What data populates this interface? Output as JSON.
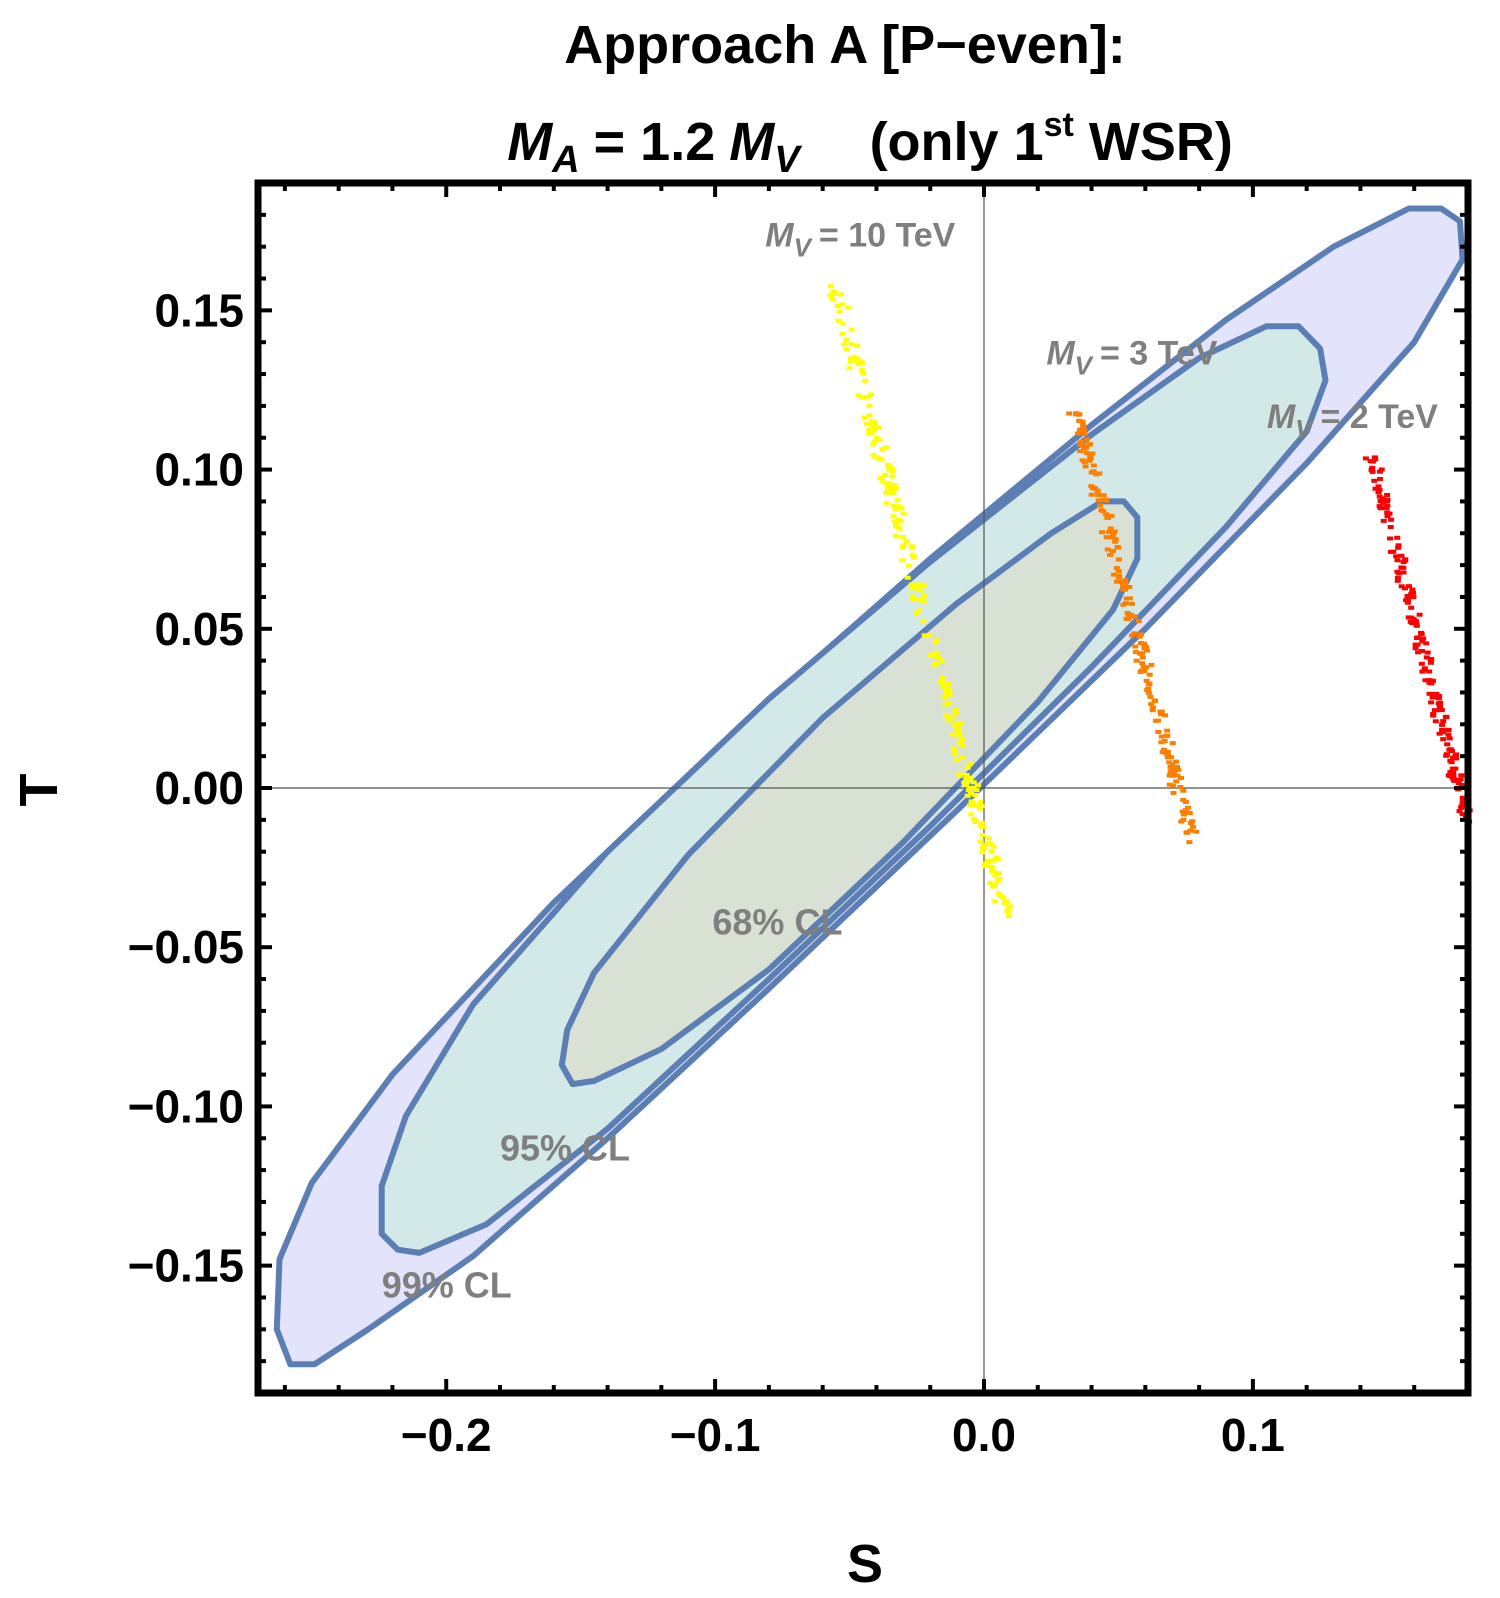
{
  "chart_data": {
    "type": "scatter",
    "title_line1": "Approach A [P−even]:",
    "title_line2": {
      "m": "M",
      "m_sub": "A",
      "eq": "= 1.2",
      "mv": "M",
      "mv_sub": "V",
      "paren_open": "(only 1",
      "sup": "st",
      "paren_close": " WSR)"
    },
    "xlabel": "S",
    "ylabel": "T",
    "xlim": [
      -0.27,
      0.18
    ],
    "ylim": [
      -0.19,
      0.19
    ],
    "x_ticks": [
      {
        "value": -0.2,
        "label": "−0.2"
      },
      {
        "value": -0.1,
        "label": "−0.1"
      },
      {
        "value": 0.0,
        "label": "0.0"
      },
      {
        "value": 0.1,
        "label": "0.1"
      }
    ],
    "y_ticks": [
      {
        "value": 0.15,
        "label": "0.15"
      },
      {
        "value": 0.1,
        "label": "0.10"
      },
      {
        "value": 0.05,
        "label": "0.05"
      },
      {
        "value": 0.0,
        "label": "0.00"
      },
      {
        "value": -0.05,
        "label": "−0.05"
      },
      {
        "value": -0.1,
        "label": "−0.10"
      },
      {
        "value": -0.15,
        "label": "−0.15"
      }
    ],
    "contours": [
      {
        "name": "99% CL",
        "fill": "#e3e3fb",
        "stroke": "#5b7fb5",
        "points": [
          [
            -0.258,
            -0.181
          ],
          [
            -0.249,
            -0.181
          ],
          [
            -0.229,
            -0.17
          ],
          [
            -0.19,
            -0.147
          ],
          [
            -0.14,
            -0.11
          ],
          [
            -0.08,
            -0.063
          ],
          [
            -0.01,
            -0.007
          ],
          [
            0.06,
            0.05
          ],
          [
            0.12,
            0.102
          ],
          [
            0.16,
            0.14
          ],
          [
            0.178,
            0.166
          ],
          [
            0.177,
            0.178
          ],
          [
            0.17,
            0.182
          ],
          [
            0.158,
            0.182
          ],
          [
            0.13,
            0.17
          ],
          [
            0.09,
            0.147
          ],
          [
            0.04,
            0.114
          ],
          [
            -0.02,
            0.072
          ],
          [
            -0.09,
            0.02
          ],
          [
            -0.16,
            -0.036
          ],
          [
            -0.22,
            -0.09
          ],
          [
            -0.25,
            -0.124
          ],
          [
            -0.262,
            -0.148
          ],
          [
            -0.263,
            -0.17
          ]
        ]
      },
      {
        "name": "95% CL",
        "fill": "#d3e9e7",
        "stroke": "#5b7fb5",
        "points": [
          [
            -0.218,
            -0.145
          ],
          [
            -0.21,
            -0.146
          ],
          [
            -0.185,
            -0.137
          ],
          [
            -0.14,
            -0.107
          ],
          [
            -0.08,
            -0.06
          ],
          [
            -0.02,
            -0.012
          ],
          [
            0.04,
            0.038
          ],
          [
            0.09,
            0.082
          ],
          [
            0.12,
            0.112
          ],
          [
            0.127,
            0.128
          ],
          [
            0.125,
            0.138
          ],
          [
            0.117,
            0.145
          ],
          [
            0.105,
            0.145
          ],
          [
            0.08,
            0.135
          ],
          [
            0.04,
            0.111
          ],
          [
            -0.02,
            0.071
          ],
          [
            -0.08,
            0.028
          ],
          [
            -0.14,
            -0.02
          ],
          [
            -0.19,
            -0.068
          ],
          [
            -0.215,
            -0.103
          ],
          [
            -0.224,
            -0.125
          ],
          [
            -0.224,
            -0.14
          ]
        ]
      },
      {
        "name": "68% CL",
        "fill": "#d8e1d4",
        "stroke": "#5b7fb5",
        "points": [
          [
            -0.153,
            -0.093
          ],
          [
            -0.145,
            -0.092
          ],
          [
            -0.12,
            -0.082
          ],
          [
            -0.08,
            -0.057
          ],
          [
            -0.03,
            -0.017
          ],
          [
            0.02,
            0.027
          ],
          [
            0.048,
            0.056
          ],
          [
            0.057,
            0.072
          ],
          [
            0.057,
            0.085
          ],
          [
            0.052,
            0.09
          ],
          [
            0.044,
            0.09
          ],
          [
            0.025,
            0.08
          ],
          [
            -0.01,
            0.058
          ],
          [
            -0.06,
            0.022
          ],
          [
            -0.11,
            -0.021
          ],
          [
            -0.145,
            -0.058
          ],
          [
            -0.155,
            -0.076
          ],
          [
            -0.157,
            -0.087
          ]
        ]
      }
    ],
    "scatter_series": [
      {
        "name": "M_V = 10 TeV",
        "color": "#ffff00",
        "start": [
          -0.055,
          0.157
        ],
        "end": [
          0.008,
          -0.04
        ],
        "width": 0.0028,
        "count": 260
      },
      {
        "name": "M_V = 3 TeV",
        "color": "#ff7f00",
        "start": [
          0.034,
          0.119
        ],
        "end": [
          0.078,
          -0.018
        ],
        "width": 0.0024,
        "count": 200
      },
      {
        "name": "M_V = 2 TeV",
        "color": "#ff0000",
        "start": [
          0.144,
          0.105
        ],
        "end": [
          0.18,
          -0.011
        ],
        "width": 0.0022,
        "count": 180
      }
    ],
    "cl_labels": [
      {
        "text": "68% CL",
        "x": -0.101,
        "y": -0.046
      },
      {
        "text": "95% CL",
        "x": -0.18,
        "y": -0.117
      },
      {
        "text": "99% CL",
        "x": -0.224,
        "y": -0.16
      }
    ],
    "mv_labels": [
      {
        "m": "M",
        "sub": "V",
        "rest": "= 10 TeV",
        "x": -0.046,
        "y": 0.17
      },
      {
        "m": "M",
        "sub": "V",
        "rest": "= 3 TeV",
        "x": 0.055,
        "y": 0.133
      },
      {
        "m": "M",
        "sub": "V",
        "rest": "= 2 TeV",
        "x": 0.137,
        "y": 0.113
      }
    ]
  }
}
